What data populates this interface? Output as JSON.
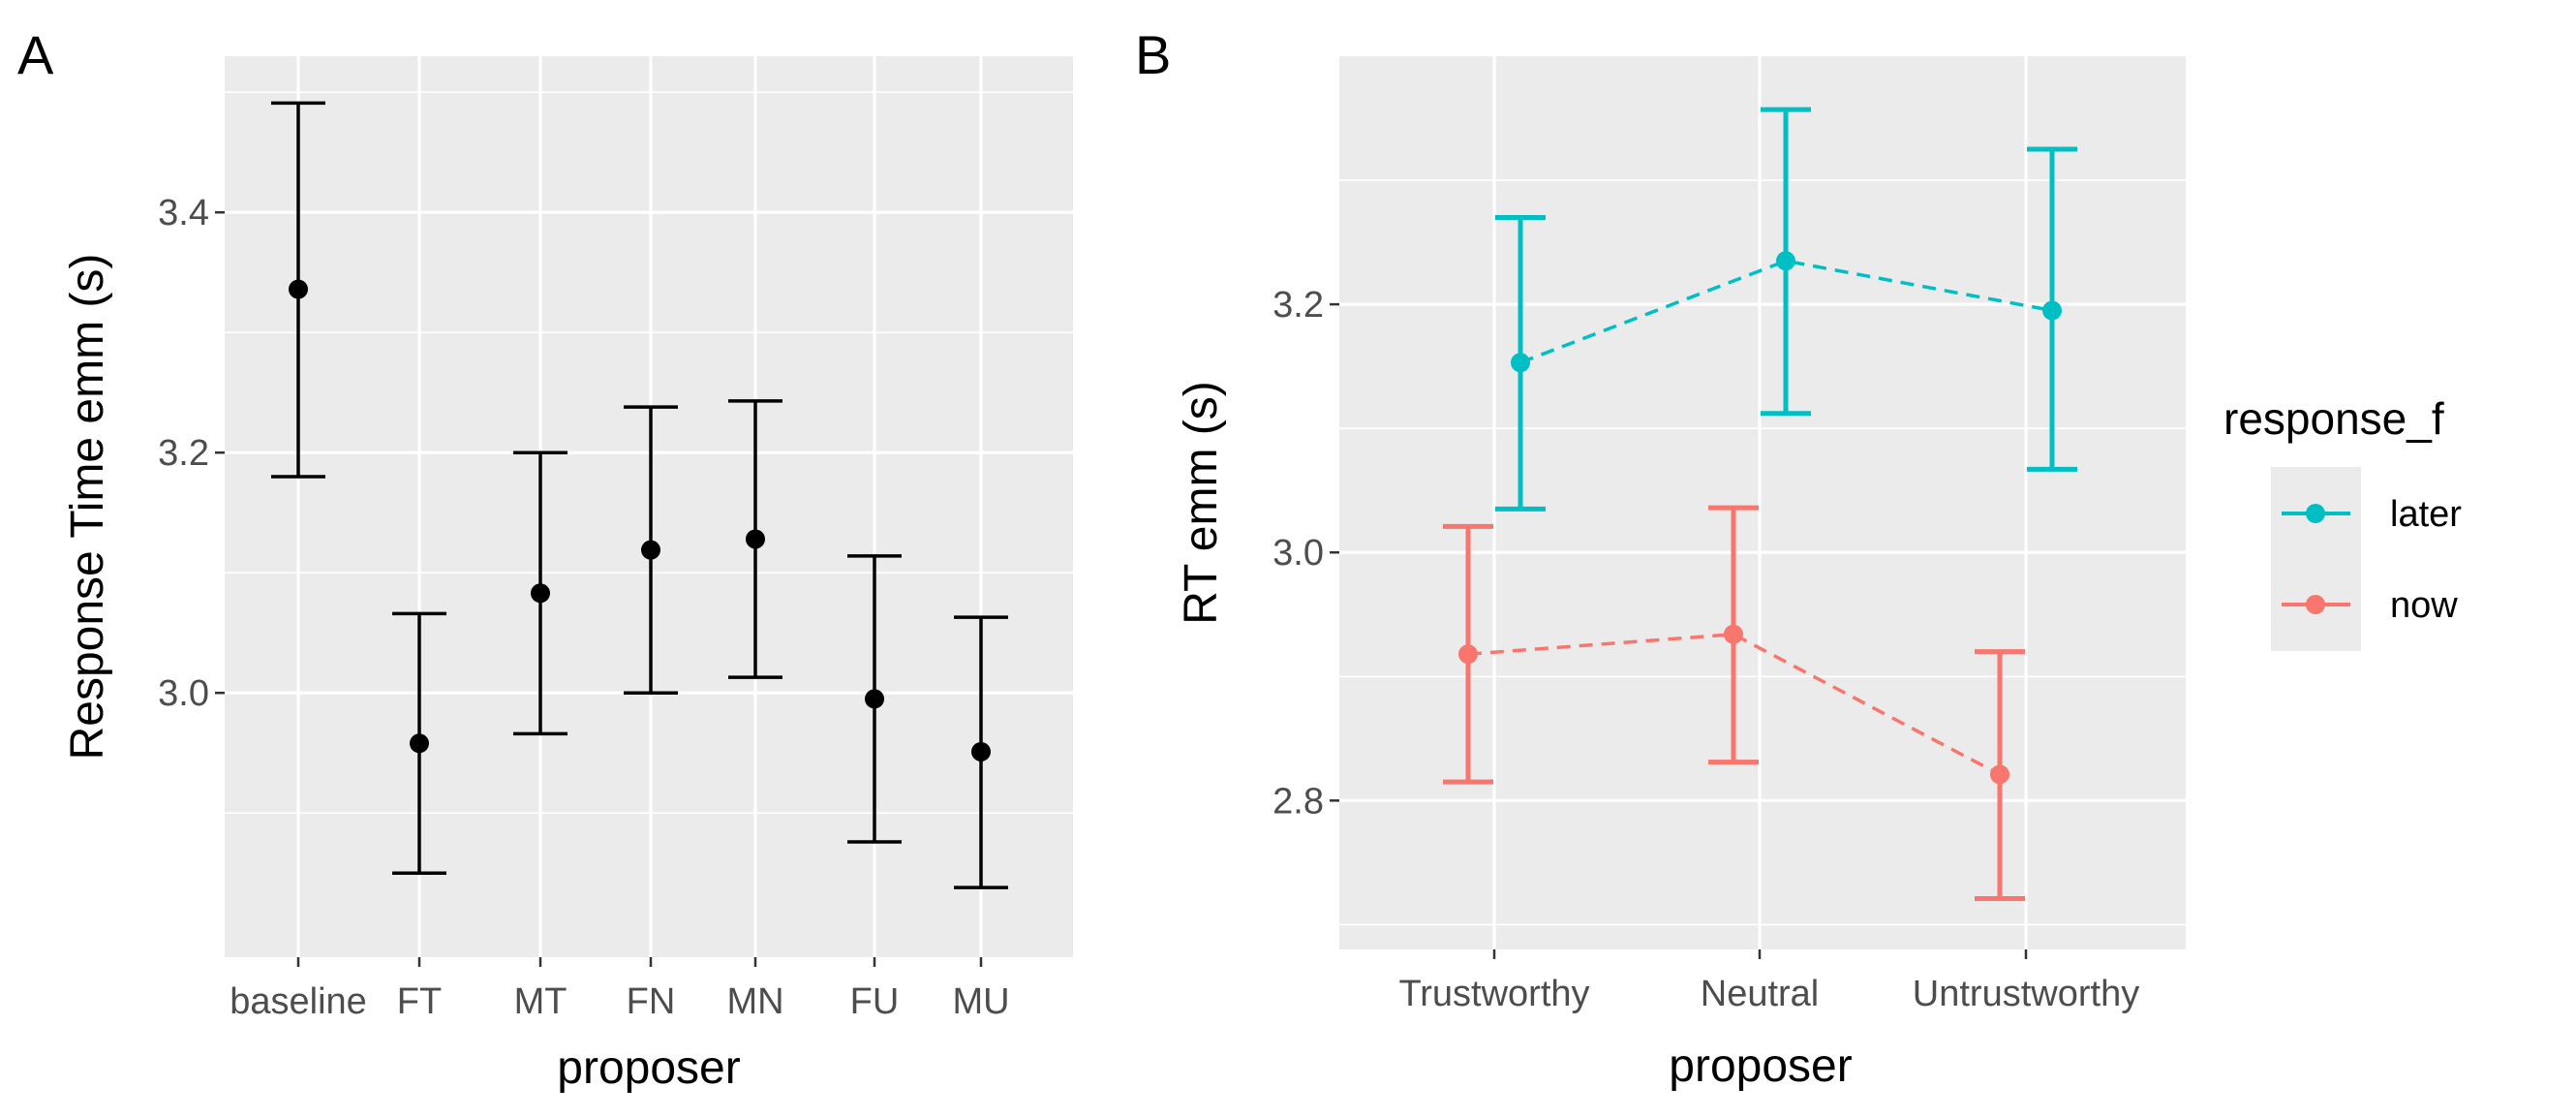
{
  "chart_data": [
    {
      "panel": "A",
      "type": "scatter",
      "xlabel": "proposer",
      "ylabel": "Response Time emm (s)",
      "categories": [
        "baseline",
        "FT",
        "MT",
        "FN",
        "MN",
        "FU",
        "MU"
      ],
      "series": [
        {
          "values": [
            3.336,
            2.958,
            3.083,
            3.119,
            3.128,
            2.995,
            2.951
          ],
          "lower": [
            3.18,
            2.85,
            2.966,
            3.0,
            3.013,
            2.876,
            2.838
          ],
          "upper": [
            3.491,
            3.066,
            3.2,
            3.238,
            3.243,
            3.114,
            3.063
          ],
          "color": "#000000"
        }
      ],
      "ylim": [
        2.78,
        3.53
      ],
      "yticks": [
        "3.0",
        "3.2",
        "3.4"
      ],
      "ytick_values": [
        3.0,
        3.2,
        3.4
      ],
      "grid": true
    },
    {
      "panel": "B",
      "type": "line",
      "xlabel": "proposer",
      "ylabel": "RT emm (s)",
      "categories": [
        "Trustworthy",
        "Neutral",
        "Untrustworthy"
      ],
      "series": [
        {
          "name": "later",
          "values": [
            3.153,
            3.235,
            3.195
          ],
          "lower": [
            3.035,
            3.112,
            3.067
          ],
          "upper": [
            3.27,
            3.357,
            3.325
          ],
          "color": "#00bfc4"
        },
        {
          "name": "now",
          "values": [
            2.918,
            2.934,
            2.821
          ],
          "lower": [
            2.815,
            2.831,
            2.721
          ],
          "upper": [
            3.021,
            3.036,
            2.92
          ],
          "color": "#f8766d"
        }
      ],
      "legend_title": "response_f",
      "ylim": [
        2.68,
        3.4
      ],
      "yticks": [
        "2.8",
        "3.0",
        "3.2"
      ],
      "ytick_values": [
        2.8,
        3.0,
        3.2
      ],
      "grid": true,
      "legend": "right"
    }
  ]
}
